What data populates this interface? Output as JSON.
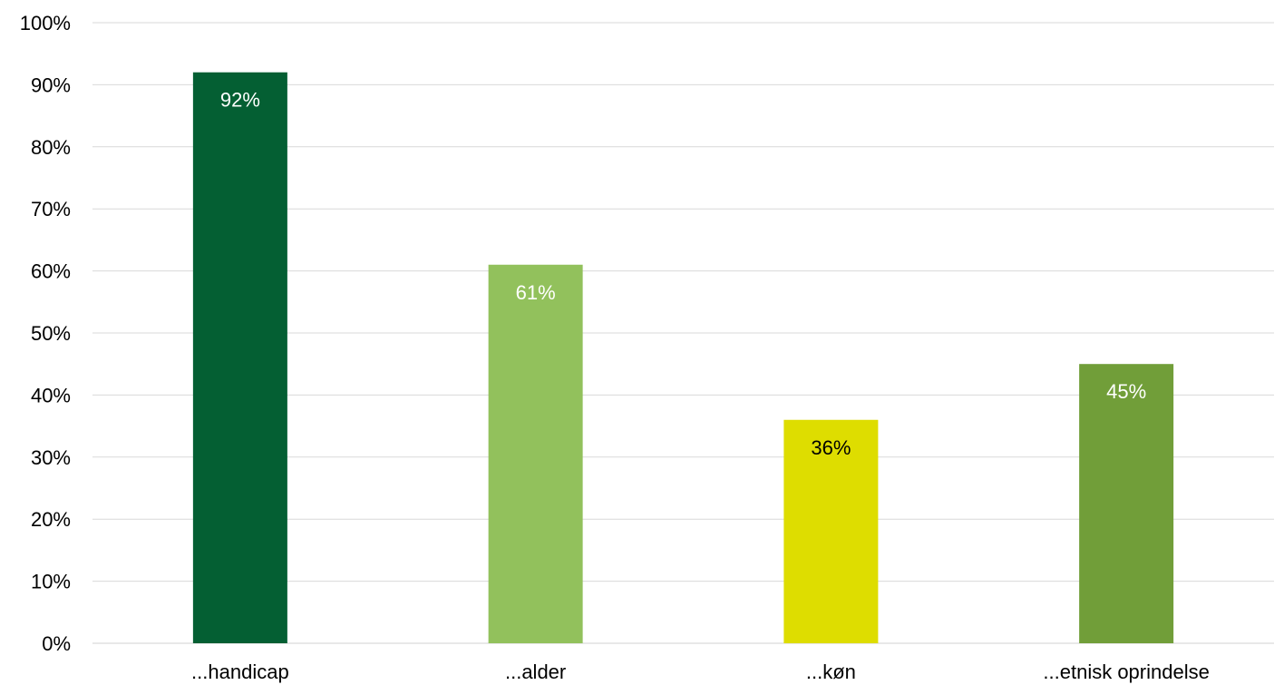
{
  "chart_data": {
    "type": "bar",
    "categories": [
      "...handicap",
      "...alder",
      "...køn",
      "...etnisk oprindelse"
    ],
    "values": [
      92,
      61,
      36,
      45
    ],
    "data_labels": [
      "92%",
      "61%",
      "36%",
      "45%"
    ],
    "bar_colors": [
      "#045f33",
      "#92c15c",
      "#dedd00",
      "#719e39"
    ],
    "data_label_colors": [
      "#ffffff",
      "#ffffff",
      "#000000",
      "#ffffff"
    ],
    "y_ticks": [
      0,
      10,
      20,
      30,
      40,
      50,
      60,
      70,
      80,
      90,
      100
    ],
    "y_tick_labels": [
      "0%",
      "10%",
      "20%",
      "30%",
      "40%",
      "50%",
      "60%",
      "70%",
      "80%",
      "90%",
      "100%"
    ],
    "ylim": [
      0,
      100
    ],
    "y_unit": "%",
    "grid": true,
    "legend": "none",
    "title": "",
    "xlabel": "",
    "ylabel": ""
  }
}
